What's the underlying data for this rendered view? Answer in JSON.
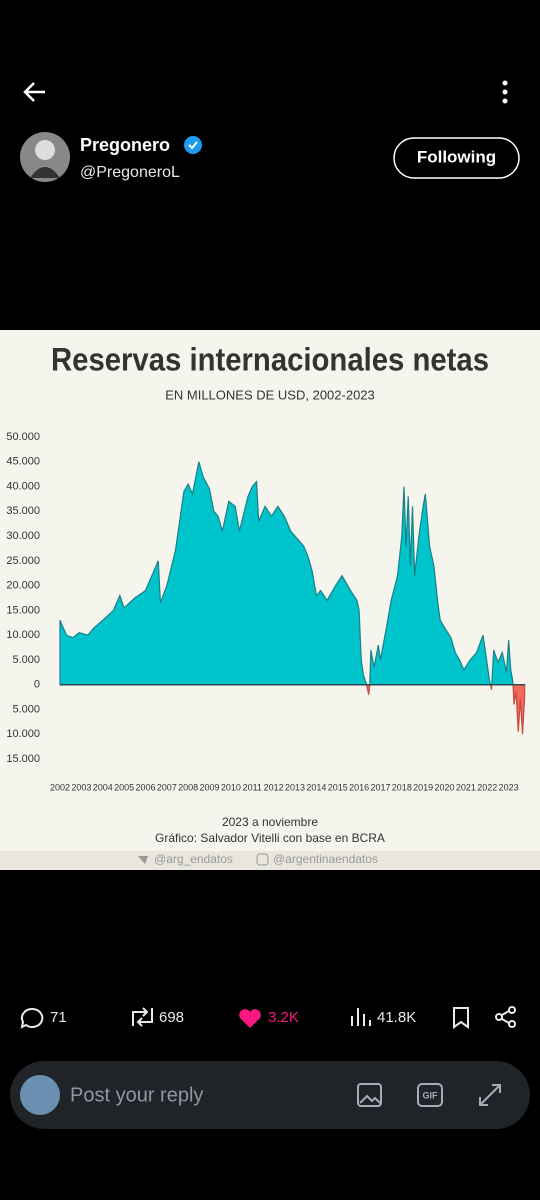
{
  "header": {
    "name": "Pregonero",
    "handle": "@PregoneroL",
    "follow_button": "Following"
  },
  "chart_data": {
    "type": "area",
    "title": "Reservas internacionales netas",
    "subtitle": "EN MILLONES DE USD, 2002-2023",
    "x": [
      2002.0,
      2002.1,
      2002.3,
      2002.6,
      2002.9,
      2003.3,
      2003.6,
      2004.0,
      2004.5,
      2004.8,
      2005.0,
      2005.5,
      2006.0,
      2006.3,
      2006.6,
      2006.7,
      2007.0,
      2007.4,
      2007.6,
      2007.8,
      2008.0,
      2008.2,
      2008.5,
      2008.7,
      2009.0,
      2009.2,
      2009.4,
      2009.6,
      2009.9,
      2010.2,
      2010.4,
      2010.8,
      2011.0,
      2011.2,
      2011.3,
      2011.6,
      2011.9,
      2012.2,
      2012.5,
      2012.8,
      2013.0,
      2013.4,
      2013.6,
      2013.8,
      2014.0,
      2014.2,
      2014.5,
      2014.9,
      2015.2,
      2015.6,
      2015.9,
      2016.0,
      2016.1,
      2016.2,
      2016.35,
      2016.45,
      2016.5,
      2016.55,
      2016.7,
      2016.9,
      2017.0,
      2017.3,
      2017.5,
      2017.8,
      2018.0,
      2018.1,
      2018.2,
      2018.3,
      2018.4,
      2018.5,
      2018.6,
      2018.8,
      2019.0,
      2019.1,
      2019.3,
      2019.5,
      2019.7,
      2019.8,
      2020.0,
      2020.3,
      2020.5,
      2020.7,
      2020.9,
      2021.2,
      2021.5,
      2021.8,
      2022.0,
      2022.1,
      2022.2,
      2022.3,
      2022.5,
      2022.7,
      2022.9,
      2023.0,
      2023.1,
      2023.2,
      2023.25,
      2023.35,
      2023.45,
      2023.55,
      2023.65,
      2023.75
    ],
    "values": [
      13000,
      12000,
      10000,
      9500,
      10500,
      10000,
      11500,
      13000,
      15000,
      18000,
      15500,
      17500,
      19000,
      22000,
      25000,
      16500,
      20000,
      27000,
      33000,
      39000,
      40500,
      38500,
      45000,
      42000,
      39500,
      35000,
      34000,
      31000,
      37000,
      36000,
      31000,
      38000,
      40000,
      41000,
      33000,
      36000,
      34000,
      36000,
      34000,
      31000,
      30000,
      28000,
      26000,
      23000,
      18000,
      19000,
      17000,
      20000,
      22000,
      19000,
      17000,
      15000,
      5000,
      2000,
      0,
      -2000,
      0,
      7000,
      3500,
      8000,
      5000,
      12000,
      17000,
      22000,
      30000,
      40000,
      28000,
      38000,
      24000,
      36000,
      22000,
      30000,
      36000,
      38500,
      28000,
      24000,
      16000,
      13000,
      11500,
      9500,
      6500,
      5000,
      3000,
      5000,
      6500,
      10000,
      4000,
      1000,
      -1000,
      7000,
      4500,
      6500,
      2500,
      9000,
      3000,
      500,
      -4000,
      -1500,
      -9500,
      -3000,
      -10000,
      -2500
    ],
    "color": "#00c4cc",
    "negative_color": "#f0695a",
    "xlim": [
      2002,
      2024
    ],
    "xticks": [
      2002,
      2003,
      2004,
      2005,
      2006,
      2007,
      2008,
      2009,
      2010,
      2011,
      2012,
      2013,
      2014,
      2015,
      2016,
      2017,
      2018,
      2019,
      2020,
      2021,
      2022,
      2023
    ],
    "ylim": [
      -15000,
      50000
    ],
    "yticks": [
      {
        "value": 50000,
        "label": "50.000"
      },
      {
        "value": 45000,
        "label": "45.000"
      },
      {
        "value": 40000,
        "label": "40.000"
      },
      {
        "value": 35000,
        "label": "35.000"
      },
      {
        "value": 30000,
        "label": "30.000"
      },
      {
        "value": 25000,
        "label": "25.000"
      },
      {
        "value": 20000,
        "label": "20.000"
      },
      {
        "value": 15000,
        "label": "15.000"
      },
      {
        "value": 10000,
        "label": "10.000"
      },
      {
        "value": 5000,
        "label": "5.000"
      },
      0,
      {
        "value": -5000,
        "label": "5.000"
      },
      {
        "value": -10000,
        "label": "10.000"
      },
      {
        "value": -15000,
        "label": "15.000"
      }
    ],
    "note": "2023 a noviembre",
    "source": "Gráfico: Salvador Vitelli con base en BCRA",
    "twitter": "@arg_endatos",
    "instagram": "@argentinaendatos"
  },
  "actions": {
    "replies": "71",
    "reposts": "698",
    "likes": "3.2K",
    "views": "41.8K"
  },
  "reply": {
    "placeholder": "Post your reply"
  }
}
